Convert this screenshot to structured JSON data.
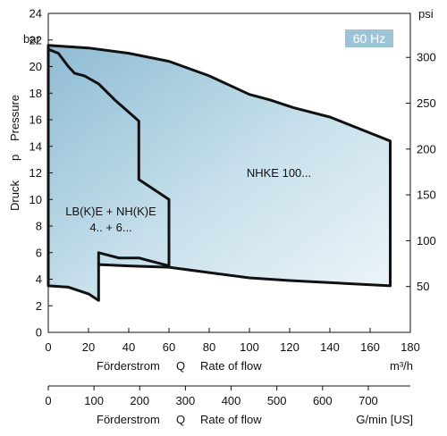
{
  "chart_data": {
    "type": "area",
    "frequency_badge": "60 Hz",
    "x_axis_primary": {
      "label_de": "Förderstrom",
      "symbol": "Q",
      "label_en": "Rate of flow",
      "unit": "m³/h",
      "range": [
        0,
        180
      ],
      "ticks": [
        "0",
        "20",
        "40",
        "60",
        "80",
        "100",
        "120",
        "140",
        "160",
        "180"
      ]
    },
    "x_axis_secondary": {
      "label_de": "Förderstrom",
      "symbol": "Q",
      "label_en": "Rate of flow",
      "unit": "G/min [US]",
      "range": [
        0,
        792
      ],
      "tick_values": [
        0,
        100,
        200,
        300,
        400,
        500,
        600,
        700
      ],
      "ticks": [
        "0",
        "100",
        "200",
        "300",
        "400",
        "500",
        "600",
        "700"
      ]
    },
    "y_axis_left": {
      "label_de": "Druck",
      "symbol": "p",
      "label_en": "Pressure",
      "unit": "bar",
      "range": [
        0,
        24
      ],
      "ticks": [
        "0",
        "2",
        "4",
        "6",
        "8",
        "10",
        "12",
        "14",
        "16",
        "18",
        "20",
        "22",
        "24"
      ]
    },
    "y_axis_right": {
      "unit": "psi",
      "range": [
        0,
        348
      ],
      "tick_values": [
        50,
        100,
        150,
        200,
        250,
        300
      ],
      "ticks": [
        "50",
        "100",
        "150",
        "200",
        "250",
        "300"
      ]
    },
    "series": [
      {
        "name": "NHKE 100...",
        "filled": true,
        "fill": "#a9cfe0",
        "points": [
          [
            0,
            21.6
          ],
          [
            20,
            21.4
          ],
          [
            40,
            21.0
          ],
          [
            60,
            20.4
          ],
          [
            80,
            19.3
          ],
          [
            100,
            17.9
          ],
          [
            110,
            17.5
          ],
          [
            122,
            16.9
          ],
          [
            140,
            16.2
          ],
          [
            160,
            15.0
          ],
          [
            170,
            14.4
          ],
          [
            170,
            3.5
          ],
          [
            120,
            3.9
          ],
          [
            100,
            4.1
          ],
          [
            80,
            4.5
          ],
          [
            60,
            4.9
          ],
          [
            40,
            5.0
          ],
          [
            25,
            5.1
          ],
          [
            25,
            2.4
          ],
          [
            20,
            2.9
          ],
          [
            10,
            3.4
          ],
          [
            0,
            3.5
          ]
        ]
      },
      {
        "name": "LB(K)E + NH(K)E",
        "name_line2": "4.. + 6...",
        "filled": false,
        "points": [
          [
            0,
            21.3
          ],
          [
            5,
            21.0
          ],
          [
            10,
            20.0
          ],
          [
            13,
            19.5
          ],
          [
            18,
            19.3
          ],
          [
            25,
            18.7
          ],
          [
            33,
            17.5
          ],
          [
            45,
            15.9
          ],
          [
            45,
            11.5
          ],
          [
            60,
            10.0
          ],
          [
            60,
            5.0
          ],
          [
            50,
            5.4
          ],
          [
            45,
            5.6
          ],
          [
            35,
            5.6
          ],
          [
            25,
            6.0
          ],
          [
            25,
            5.1
          ]
        ]
      }
    ],
    "grid": false
  }
}
